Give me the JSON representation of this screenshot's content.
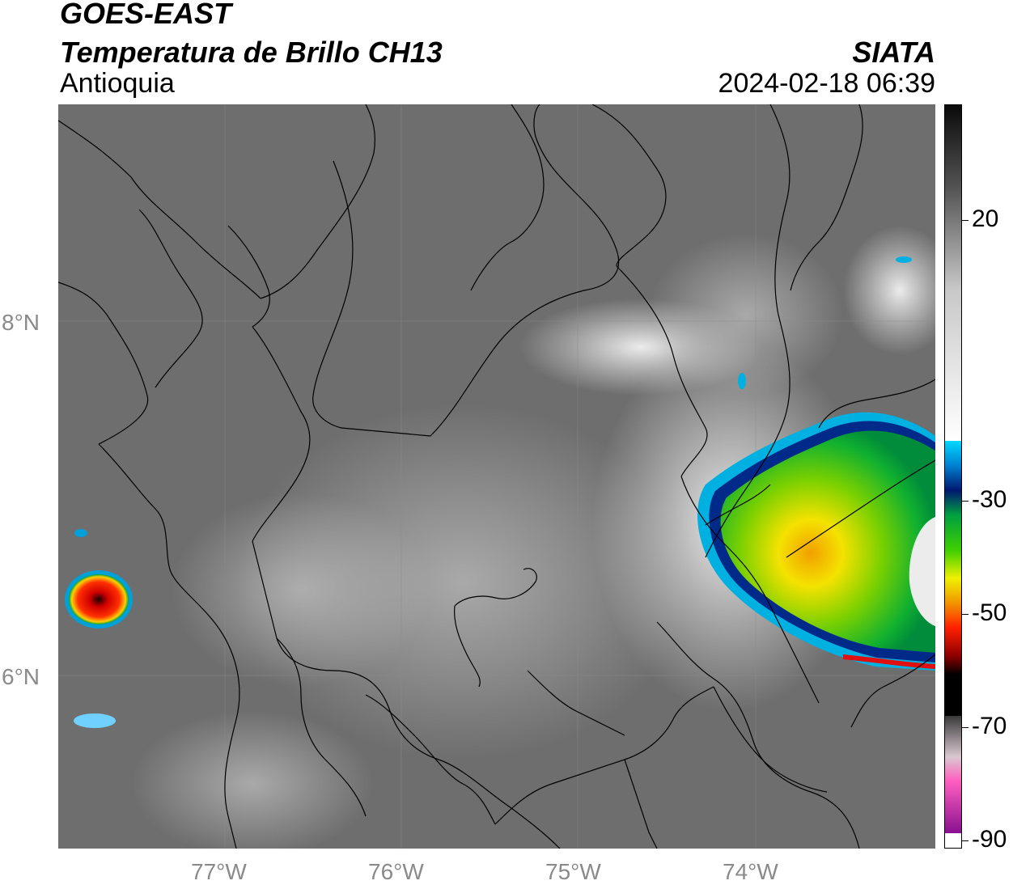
{
  "header": {
    "satellite": "GOES-EAST",
    "product": "Temperatura de Brillo CH13",
    "region": "Antioquia",
    "agency": "SIATA",
    "datetime": "2024-02-18 06:39"
  },
  "axes": {
    "x_ticks": [
      "77°W",
      "76°W",
      "75°W",
      "74°W"
    ],
    "y_ticks": [
      "8°N",
      "6°N"
    ]
  },
  "colorbar": {
    "labels": [
      "20",
      "-30",
      "-50",
      "-70",
      "-90"
    ]
  },
  "colors": {
    "background_gray": "#6e6e6e",
    "cold_cloud_cyan": "#00b0e0",
    "cold_cloud_blue": "#002a8a",
    "cold_cloud_green": "#00c030",
    "cold_cloud_yellow": "#f0e000",
    "cold_cloud_red": "#e01010"
  }
}
